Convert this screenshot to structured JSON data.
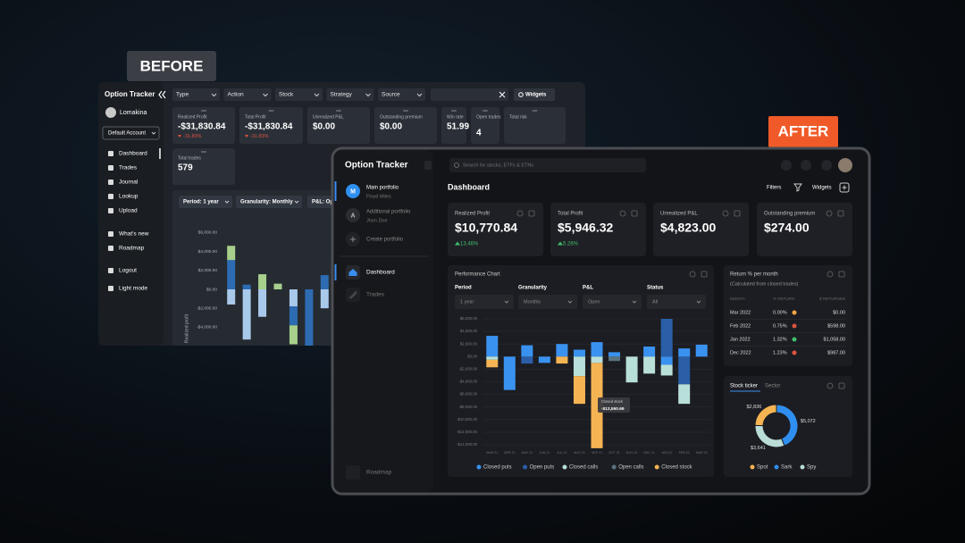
{
  "badges": {
    "before": "BEFORE",
    "after": "AFTER"
  },
  "before": {
    "app_title": "Option Tracker",
    "filters": [
      "Type",
      "Action",
      "Stock",
      "Strategy",
      "Source"
    ],
    "widgets_button": "Widgets",
    "user": "Lomakina",
    "account": "Default Account",
    "nav": [
      "Dashboard",
      "Trades",
      "Journal",
      "Lookup",
      "Upload",
      "What's new",
      "Roadmap",
      "Logout",
      "Light mode"
    ],
    "cards": [
      {
        "label": "Realized Profit",
        "value": "-$31,830.84",
        "change": "-31.83%"
      },
      {
        "label": "Total Profit",
        "value": "-$31,830.84",
        "change": "-31.83%"
      },
      {
        "label": "Unrealized P&L",
        "value": "$0.00"
      },
      {
        "label": "Outstanding premium",
        "value": "$0.00"
      },
      {
        "label": "Win rate",
        "value": "51.99"
      },
      {
        "label": "Open trades",
        "value": "4"
      },
      {
        "label": "Total risk"
      },
      {
        "label": "Total trades",
        "value": "579"
      }
    ],
    "chart_controls": [
      "Period: 1 year",
      "Granularity: Monthly",
      "P&L: Op"
    ]
  },
  "after": {
    "app_title": "Option Tracker",
    "search_placeholder": "Search for stocks, ETFs & ETNs",
    "portfolios": [
      {
        "initial": "M",
        "name": "Main portfolio",
        "owner": "Floyd Miles"
      },
      {
        "initial": "A",
        "name": "Additional portfolio",
        "owner": "Jhon Doe"
      }
    ],
    "create_portfolio": "Create portfolio",
    "nav": [
      "Dashboard",
      "Trades"
    ],
    "roadmap": "Roadmap",
    "page_title": "Dashboard",
    "filters_button": "Filters",
    "widgets_button": "Widgets",
    "cards": [
      {
        "label": "Realized Profit",
        "value": "$10,770.84",
        "change": "13.46%"
      },
      {
        "label": "Total Profit",
        "value": "$5,946.32",
        "change": "5.26%"
      },
      {
        "label": "Unrealized P&L",
        "value": "$4,823.00"
      },
      {
        "label": "Outstanding premium",
        "value": "$274.00"
      }
    ],
    "performance": {
      "title": "Performance Chart",
      "controls": [
        {
          "label": "Period",
          "value": "1 year"
        },
        {
          "label": "Granularity",
          "value": "Monthly"
        },
        {
          "label": "P&L",
          "value": "Open"
        },
        {
          "label": "Status",
          "value": "All"
        }
      ]
    },
    "returns": {
      "title": "Return % per month",
      "subtitle": "(Calculated from closed trades)",
      "columns": [
        "MONTH",
        "% RETURN",
        "$ RETURNED"
      ],
      "rows": [
        [
          "Mar 2022",
          "0.00%",
          "$0.00"
        ],
        [
          "Feb 2022",
          "0.75%",
          "$598.00"
        ],
        [
          "Jan 2022",
          "1.32%",
          "$1,058.00"
        ],
        [
          "Dec 2022",
          "1.23%",
          "$987.00"
        ]
      ]
    },
    "ticker_tabs": [
      "Stock ticker",
      "Sector"
    ]
  },
  "chart_data": [
    {
      "type": "bar",
      "y_label": "Realized profit",
      "grid": false,
      "categories": [
        null,
        null,
        null,
        null,
        null,
        null,
        null
      ],
      "series": [
        {
          "color": "#a9c9ea",
          "values": [
            -1600,
            -5300,
            -2900,
            0,
            -1800,
            0,
            -2000
          ]
        },
        {
          "color": "#2d6cb3",
          "values": [
            3100,
            500,
            0,
            0,
            -2000,
            -6000,
            1500
          ]
        },
        {
          "color": "#a8cf8c",
          "values": [
            1500,
            0,
            1600,
            600,
            -2000,
            0,
            0
          ]
        }
      ],
      "ylim": [
        -6000,
        6000
      ],
      "yticks": [
        {
          "value": 6000,
          "label": "$6,000.00"
        },
        {
          "value": 4000,
          "label": "$4,000.00"
        },
        {
          "value": 2000,
          "label": "$2,000.00"
        },
        {
          "value": 0,
          "label": "$0.00"
        },
        {
          "value": -2000,
          "label": "-$2,000.00"
        },
        {
          "value": -4000,
          "label": "-$4,000.00"
        }
      ]
    },
    {
      "type": "bar",
      "grid": true,
      "categories": [
        "MAR 21",
        "APR 21",
        "MAY 21",
        "JUN 21",
        "JUL 21",
        "AUG 21",
        "SEP 21",
        "OCT 21",
        "NOV 21",
        "DEC 21",
        "JAN 22",
        "FEB 22",
        "MAR 22"
      ],
      "series": [
        {
          "name": "Closed puts",
          "color": "#3a92f0",
          "values": [
            3300,
            -5300,
            1800,
            -1000,
            2000,
            1100,
            2300,
            700,
            0,
            1600,
            -1300,
            1300,
            1900
          ]
        },
        {
          "name": "Open puts",
          "color": "#2a5fa8",
          "values": [
            0,
            0,
            -1100,
            0,
            0,
            0,
            0,
            0,
            0,
            0,
            6000,
            -4400,
            0
          ]
        },
        {
          "name": "Closed calls",
          "color": "#b9dfda",
          "values": [
            -500,
            0,
            0,
            0,
            0,
            -3100,
            -1000,
            0,
            -4100,
            -2700,
            -1700,
            -3100,
            0
          ]
        },
        {
          "name": "Open calls",
          "color": "#5a7480",
          "values": [
            0,
            0,
            0,
            0,
            0,
            0,
            0,
            -700,
            0,
            0,
            0,
            0,
            0
          ]
        },
        {
          "name": "Closed stock",
          "color": "#f5b453",
          "values": [
            -1200,
            0,
            0,
            0,
            -1100,
            -4400,
            -13550.69,
            0,
            0,
            0,
            0,
            0,
            0
          ],
          "value_labels": [
            null,
            null,
            null,
            null,
            null,
            null,
            "-$13,550.69",
            null,
            null,
            null,
            null,
            null,
            null
          ]
        }
      ],
      "ylim": [
        -14000,
        6000
      ],
      "yticks": [
        {
          "value": 6000,
          "label": "$6,000.00"
        },
        {
          "value": 4000,
          "label": "$4,000.00"
        },
        {
          "value": 2000,
          "label": "$2,000.00"
        },
        {
          "value": 0,
          "label": "$0.00"
        },
        {
          "value": -2000,
          "label": "-$2,000.00"
        },
        {
          "value": -4000,
          "label": "-$4,000.00"
        },
        {
          "value": -6000,
          "label": "-$6,000.00"
        },
        {
          "value": -8000,
          "label": "-$8,000.00"
        },
        {
          "value": -10000,
          "label": "-$10,000.00"
        },
        {
          "value": -12000,
          "label": "-$12,000.00"
        },
        {
          "value": -14000,
          "label": "-$14,000.00"
        }
      ]
    },
    {
      "type": "donut",
      "categories": [
        "Spot",
        "Sark",
        "Spy"
      ],
      "values": [
        2836,
        5072,
        3641
      ],
      "value_labels": [
        "$2,836",
        "$5,072",
        "$3,641"
      ],
      "colors": [
        "#f5b453",
        "#2f8ff0",
        "#b9dcd6"
      ]
    }
  ]
}
